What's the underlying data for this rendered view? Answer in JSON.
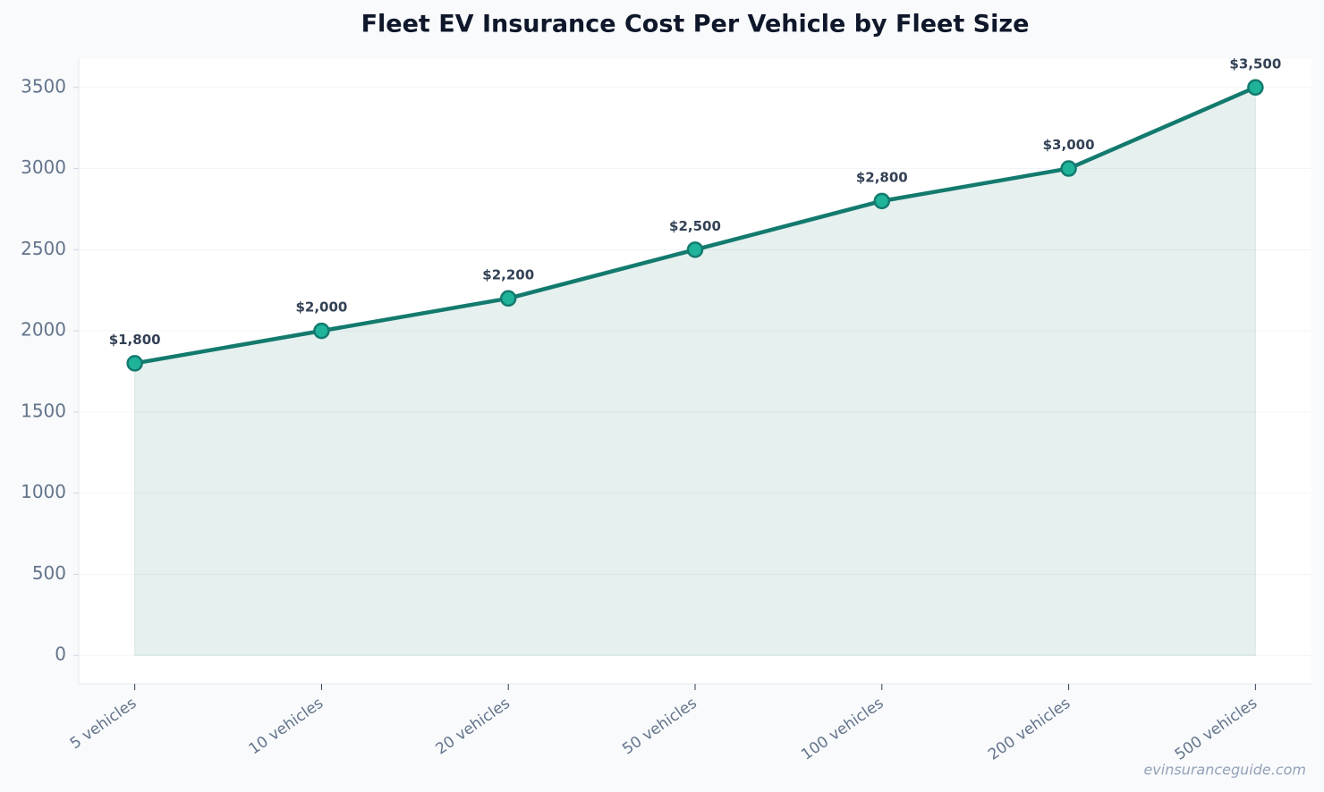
{
  "chart_data": {
    "type": "line",
    "title": "Fleet EV Insurance Cost Per Vehicle by Fleet Size",
    "categories": [
      "5 vehicles",
      "10 vehicles",
      "20 vehicles",
      "50 vehicles",
      "100 vehicles",
      "200 vehicles",
      "500 vehicles"
    ],
    "values": [
      1800,
      2000,
      2200,
      2500,
      2800,
      3000,
      3500
    ],
    "value_labels": [
      "$1,800",
      "$2,000",
      "$2,200",
      "$2,500",
      "$2,800",
      "$3,000",
      "$3,500"
    ],
    "color": "#137a6e",
    "marker_color": "#1fb39b",
    "area": true,
    "ylim": [
      -175,
      3675
    ],
    "yticks": [
      0,
      500,
      1000,
      1500,
      2000,
      2500,
      3000,
      3500
    ],
    "grid": true,
    "watermark": "evinsuranceguide.com"
  }
}
